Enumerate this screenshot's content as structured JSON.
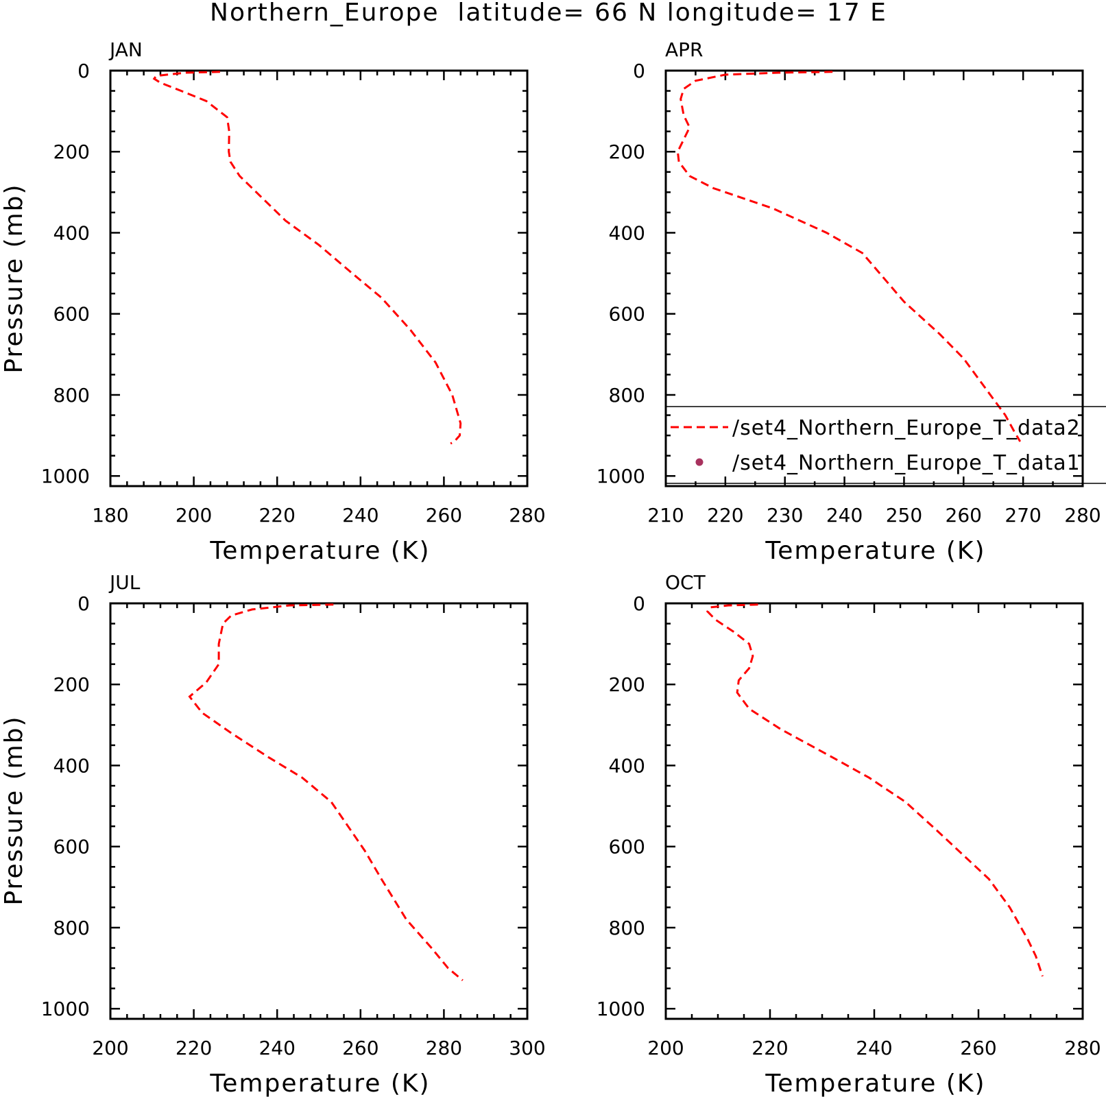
{
  "figure_title": "Northern_Europe  latitude= 66 N longitude= 17 E",
  "legend": {
    "entries": [
      {
        "label": "/set4_Northern_Europe_T_data2",
        "color": "#ff0000",
        "style": "dashed-line"
      },
      {
        "label": "/set4_Northern_Europe_T_data1",
        "color": "#a8325e",
        "style": "marker"
      }
    ],
    "placement": "bottom of APR panel"
  },
  "chart_data": [
    {
      "type": "line",
      "panel": "JAN",
      "xlabel": "Temperature (K)",
      "ylabel": "Pressure (mb)",
      "xlim": [
        180,
        280
      ],
      "ylim": [
        1025,
        0
      ],
      "xticks": [
        180,
        200,
        220,
        240,
        260,
        280
      ],
      "yticks": [
        0,
        200,
        400,
        600,
        800,
        1000
      ],
      "series": [
        {
          "color": "#ff0000",
          "points": [
            [
              206.3,
              3
            ],
            [
              198,
              5
            ],
            [
              191,
              13
            ],
            [
              190.5,
              20
            ],
            [
              192,
              30
            ],
            [
              197,
              50
            ],
            [
              203,
              75
            ],
            [
              208,
              115
            ],
            [
              208.5,
              150
            ],
            [
              208.4,
              200
            ],
            [
              208.8,
              225
            ],
            [
              211,
              260
            ],
            [
              216,
              310
            ],
            [
              222,
              370
            ],
            [
              230,
              430
            ],
            [
              238,
              500
            ],
            [
              245,
              560
            ],
            [
              252,
              640
            ],
            [
              258,
              720
            ],
            [
              262,
              800
            ],
            [
              264,
              870
            ],
            [
              263.8,
              900
            ],
            [
              262.5,
              915
            ],
            [
              261.6,
              920
            ]
          ]
        }
      ]
    },
    {
      "type": "line",
      "panel": "APR",
      "xlabel": "Temperature (K)",
      "ylabel": "Pressure (mb)",
      "xlim": [
        210,
        280
      ],
      "ylim": [
        1025,
        0
      ],
      "xticks": [
        210,
        220,
        230,
        240,
        250,
        260,
        270,
        280
      ],
      "yticks": [
        0,
        200,
        400,
        600,
        800,
        1000
      ],
      "series": [
        {
          "color": "#ff0000",
          "points": [
            [
              238,
              3
            ],
            [
              229,
              5
            ],
            [
              220,
              10
            ],
            [
              215,
              25
            ],
            [
              213,
              45
            ],
            [
              212.5,
              70
            ],
            [
              213,
              110
            ],
            [
              214,
              140
            ],
            [
              213,
              170
            ],
            [
              212,
              200
            ],
            [
              212.2,
              225
            ],
            [
              214,
              260
            ],
            [
              218,
              290
            ],
            [
              228,
              340
            ],
            [
              237,
              400
            ],
            [
              243,
              450
            ],
            [
              250,
              570
            ],
            [
              256,
              650
            ],
            [
              260,
              710
            ],
            [
              264,
              790
            ],
            [
              267,
              850
            ],
            [
              268.5,
              890
            ],
            [
              269.5,
              915
            ]
          ]
        }
      ]
    },
    {
      "type": "line",
      "panel": "JUL",
      "xlabel": "Temperature (K)",
      "ylabel": "Pressure (mb)",
      "xlim": [
        200,
        300
      ],
      "ylim": [
        1025,
        0
      ],
      "xticks": [
        200,
        220,
        240,
        260,
        280,
        300
      ],
      "yticks": [
        0,
        200,
        400,
        600,
        800,
        1000
      ],
      "series": [
        {
          "color": "#ff0000",
          "points": [
            [
              253.5,
              3
            ],
            [
              243,
              5
            ],
            [
              234,
              15
            ],
            [
              229,
              30
            ],
            [
              227,
              50
            ],
            [
              226,
              100
            ],
            [
              226,
              150
            ],
            [
              223,
              195
            ],
            [
              219,
              230
            ],
            [
              222,
              270
            ],
            [
              229,
              320
            ],
            [
              238,
              380
            ],
            [
              246,
              430
            ],
            [
              253,
              490
            ],
            [
              257,
              550
            ],
            [
              261,
              610
            ],
            [
              265,
              680
            ],
            [
              271,
              780
            ],
            [
              277,
              850
            ],
            [
              281,
              900
            ],
            [
              284.5,
              930
            ]
          ]
        }
      ]
    },
    {
      "type": "line",
      "panel": "OCT",
      "xlabel": "Temperature (K)",
      "ylabel": "Pressure (mb)",
      "xlim": [
        200,
        280
      ],
      "ylim": [
        1025,
        0
      ],
      "xticks": [
        200,
        220,
        240,
        260,
        280
      ],
      "yticks": [
        0,
        200,
        400,
        600,
        800,
        1000
      ],
      "series": [
        {
          "color": "#ff0000",
          "points": [
            [
              217.7,
              3
            ],
            [
              212,
              5
            ],
            [
              208.5,
              10
            ],
            [
              208,
              20
            ],
            [
              209.5,
              40
            ],
            [
              213,
              70
            ],
            [
              216,
              100
            ],
            [
              216.7,
              130
            ],
            [
              216,
              160
            ],
            [
              214,
              190
            ],
            [
              213.7,
              220
            ],
            [
              216,
              260
            ],
            [
              222,
              310
            ],
            [
              232,
              380
            ],
            [
              239,
              430
            ],
            [
              246,
              490
            ],
            [
              252,
              560
            ],
            [
              257,
              620
            ],
            [
              262,
              680
            ],
            [
              266,
              750
            ],
            [
              269.5,
              830
            ],
            [
              271,
              870
            ],
            [
              272.3,
              920
            ]
          ]
        }
      ]
    }
  ]
}
